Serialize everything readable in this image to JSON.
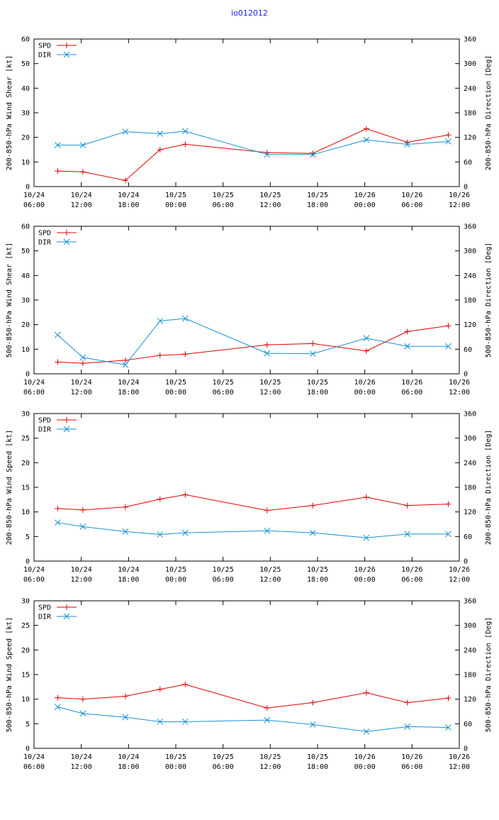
{
  "title": "io012012",
  "colors": {
    "spd": "#e00000",
    "dir": "#1890d0",
    "axis": "#000000",
    "title": "#2020ff"
  },
  "chart_data": [
    {
      "type": "line",
      "ylabel": "200-850-hPa Wind Shear [kt]",
      "y2label": "200-850-hPa Direction [Deg]",
      "ylim": [
        0,
        60
      ],
      "yticks": [
        0,
        10,
        20,
        30,
        40,
        50,
        60
      ],
      "y2lim": [
        0,
        360
      ],
      "y2ticks": [
        0,
        60,
        120,
        180,
        240,
        300,
        360
      ],
      "xlim": [
        0,
        54
      ],
      "xticks": [
        {
          "t": 0,
          "l1": "10/24",
          "l2": "06:00"
        },
        {
          "t": 6,
          "l1": "10/24",
          "l2": "12:00"
        },
        {
          "t": 12,
          "l1": "10/24",
          "l2": "18:00"
        },
        {
          "t": 18,
          "l1": "10/25",
          "l2": "00:00"
        },
        {
          "t": 24,
          "l1": "10/25",
          "l2": "06:00"
        },
        {
          "t": 30,
          "l1": "10/25",
          "l2": "12:00"
        },
        {
          "t": 36,
          "l1": "10/25",
          "l2": "18:00"
        },
        {
          "t": 42,
          "l1": "10/26",
          "l2": "00:00"
        },
        {
          "t": 48,
          "l1": "10/26",
          "l2": "06:00"
        },
        {
          "t": 54,
          "l1": "10/26",
          "l2": "12:00"
        }
      ],
      "series": [
        {
          "name": "SPD",
          "axis": "left",
          "marker": "plus",
          "x": [
            3,
            6.2,
            11.6,
            16,
            19.2,
            29.6,
            35.4,
            42.2,
            47.4,
            52.6
          ],
          "values": [
            6.3,
            6,
            2.5,
            15,
            17.2,
            13.8,
            13.5,
            23.5,
            18,
            21
          ]
        },
        {
          "name": "DIR",
          "axis": "right",
          "marker": "x",
          "x": [
            3,
            6.2,
            11.6,
            16,
            19.2,
            29.6,
            35.4,
            42.2,
            47.4,
            52.6
          ],
          "values": [
            101,
            101,
            134,
            129,
            135,
            78,
            78,
            114,
            103,
            110
          ]
        }
      ]
    },
    {
      "type": "line",
      "ylabel": "500-850-hPa Wind Shear [kt]",
      "y2label": "500-850-hPa Direction [Deg]",
      "ylim": [
        0,
        60
      ],
      "yticks": [
        0,
        10,
        20,
        30,
        40,
        50,
        60
      ],
      "y2lim": [
        0,
        360
      ],
      "y2ticks": [
        0,
        60,
        120,
        180,
        240,
        300,
        360
      ],
      "xlim": [
        0,
        54
      ],
      "xticks": [
        {
          "t": 0,
          "l1": "10/24",
          "l2": "06:00"
        },
        {
          "t": 6,
          "l1": "10/24",
          "l2": "12:00"
        },
        {
          "t": 12,
          "l1": "10/24",
          "l2": "18:00"
        },
        {
          "t": 18,
          "l1": "10/25",
          "l2": "00:00"
        },
        {
          "t": 24,
          "l1": "10/25",
          "l2": "06:00"
        },
        {
          "t": 30,
          "l1": "10/25",
          "l2": "12:00"
        },
        {
          "t": 36,
          "l1": "10/25",
          "l2": "18:00"
        },
        {
          "t": 42,
          "l1": "10/26",
          "l2": "00:00"
        },
        {
          "t": 48,
          "l1": "10/26",
          "l2": "06:00"
        },
        {
          "t": 54,
          "l1": "10/26",
          "l2": "12:00"
        }
      ],
      "series": [
        {
          "name": "SPD",
          "axis": "left",
          "marker": "plus",
          "x": [
            3,
            6.2,
            11.6,
            16,
            19.2,
            29.6,
            35.4,
            42.2,
            47.4,
            52.6
          ],
          "values": [
            4.8,
            4.3,
            5.5,
            7.5,
            8,
            11.8,
            12.3,
            9.3,
            17.2,
            19.5
          ]
        },
        {
          "name": "DIR",
          "axis": "right",
          "marker": "x",
          "x": [
            3,
            6.2,
            11.6,
            16,
            19.2,
            29.6,
            35.4,
            42.2,
            47.4,
            52.6
          ],
          "values": [
            95,
            40,
            22,
            129,
            135,
            50,
            49,
            87,
            67,
            67
          ]
        }
      ]
    },
    {
      "type": "line",
      "ylabel": "200-850-hPa Wind Speed [kt]",
      "y2label": "200-850-hPa Direction [Deg]",
      "ylim": [
        0,
        30
      ],
      "yticks": [
        0,
        5,
        10,
        15,
        20,
        25,
        30
      ],
      "y2lim": [
        0,
        360
      ],
      "y2ticks": [
        0,
        60,
        120,
        180,
        240,
        300,
        360
      ],
      "xlim": [
        0,
        54
      ],
      "xticks": [
        {
          "t": 0,
          "l1": "10/24",
          "l2": "06:00"
        },
        {
          "t": 6,
          "l1": "10/24",
          "l2": "12:00"
        },
        {
          "t": 12,
          "l1": "10/24",
          "l2": "18:00"
        },
        {
          "t": 18,
          "l1": "10/25",
          "l2": "00:00"
        },
        {
          "t": 24,
          "l1": "10/25",
          "l2": "06:00"
        },
        {
          "t": 30,
          "l1": "10/25",
          "l2": "12:00"
        },
        {
          "t": 36,
          "l1": "10/25",
          "l2": "18:00"
        },
        {
          "t": 42,
          "l1": "10/26",
          "l2": "00:00"
        },
        {
          "t": 48,
          "l1": "10/26",
          "l2": "06:00"
        },
        {
          "t": 54,
          "l1": "10/26",
          "l2": "12:00"
        }
      ],
      "series": [
        {
          "name": "SPD",
          "axis": "left",
          "marker": "plus",
          "x": [
            3,
            6.2,
            11.6,
            16,
            19.2,
            29.6,
            35.4,
            42.2,
            47.4,
            52.6
          ],
          "values": [
            10.7,
            10.4,
            11,
            12.6,
            13.5,
            10.3,
            11.3,
            13,
            11.3,
            11.6
          ]
        },
        {
          "name": "DIR",
          "axis": "right",
          "marker": "x",
          "x": [
            3,
            6.2,
            11.6,
            16,
            19.2,
            29.6,
            35.4,
            42.2,
            47.4,
            52.6
          ],
          "values": [
            94,
            84,
            72,
            65,
            69,
            74,
            69,
            57,
            66,
            66
          ]
        }
      ]
    },
    {
      "type": "line",
      "ylabel": "500-850-hPa Wind Speed [kt]",
      "y2label": "500-850-hPa Direction [Deg]",
      "ylim": [
        0,
        30
      ],
      "yticks": [
        0,
        5,
        10,
        15,
        20,
        25,
        30
      ],
      "y2lim": [
        0,
        360
      ],
      "y2ticks": [
        0,
        60,
        120,
        180,
        240,
        300,
        360
      ],
      "xlim": [
        0,
        54
      ],
      "xticks": [
        {
          "t": 0,
          "l1": "10/24",
          "l2": "06:00"
        },
        {
          "t": 6,
          "l1": "10/24",
          "l2": "12:00"
        },
        {
          "t": 12,
          "l1": "10/24",
          "l2": "18:00"
        },
        {
          "t": 18,
          "l1": "10/25",
          "l2": "00:00"
        },
        {
          "t": 24,
          "l1": "10/25",
          "l2": "06:00"
        },
        {
          "t": 30,
          "l1": "10/25",
          "l2": "12:00"
        },
        {
          "t": 36,
          "l1": "10/25",
          "l2": "18:00"
        },
        {
          "t": 42,
          "l1": "10/26",
          "l2": "00:00"
        },
        {
          "t": 48,
          "l1": "10/26",
          "l2": "06:00"
        },
        {
          "t": 54,
          "l1": "10/26",
          "l2": "12:00"
        }
      ],
      "series": [
        {
          "name": "SPD",
          "axis": "left",
          "marker": "plus",
          "x": [
            3,
            6.2,
            11.6,
            16,
            19.2,
            29.6,
            35.4,
            42.2,
            47.4,
            52.6
          ],
          "values": [
            10.3,
            10,
            10.6,
            12,
            13,
            8.2,
            9.3,
            11.3,
            9.3,
            10.2
          ]
        },
        {
          "name": "DIR",
          "axis": "right",
          "marker": "x",
          "x": [
            3,
            6.2,
            11.6,
            16,
            19.2,
            29.6,
            35.4,
            42.2,
            47.4,
            52.6
          ],
          "values": [
            101,
            85,
            76,
            65,
            65,
            69,
            58,
            41,
            53,
            51
          ]
        }
      ]
    }
  ]
}
